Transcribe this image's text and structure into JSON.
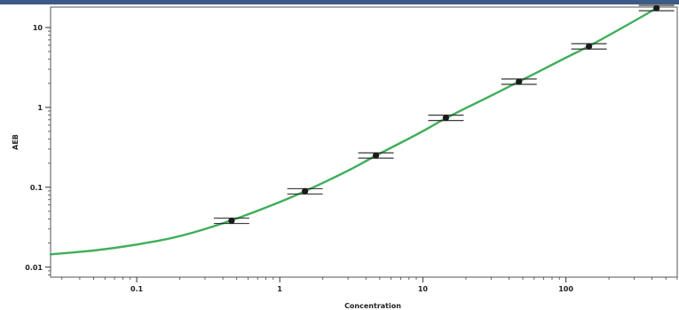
{
  "chart_data": {
    "type": "scatter",
    "xlabel": "Concentration",
    "ylabel": "AEB",
    "xscale": "log",
    "yscale": "log",
    "xlim": [
      0.025,
      600
    ],
    "ylim": [
      0.0075,
      18
    ],
    "x_ticks": [
      {
        "value": 0.1,
        "label": "0.1"
      },
      {
        "value": 1,
        "label": "1"
      },
      {
        "value": 10,
        "label": "10"
      },
      {
        "value": 100,
        "label": "100"
      }
    ],
    "y_ticks": [
      {
        "value": 0.01,
        "label": "0.01"
      },
      {
        "value": 0.1,
        "label": "0.1"
      },
      {
        "value": 1,
        "label": "1"
      },
      {
        "value": 10,
        "label": "10"
      }
    ],
    "points": [
      {
        "x": 0.46,
        "y": 0.038
      },
      {
        "x": 1.5,
        "y": 0.089
      },
      {
        "x": 4.7,
        "y": 0.25
      },
      {
        "x": 14.5,
        "y": 0.74
      },
      {
        "x": 47,
        "y": 2.1
      },
      {
        "x": 145,
        "y": 5.8
      },
      {
        "x": 430,
        "y": 17.5
      }
    ],
    "curve": {
      "x": [
        0.025,
        0.05,
        0.1,
        0.2,
        0.46,
        1,
        1.5,
        3,
        4.7,
        10,
        14.5,
        30,
        47,
        100,
        145,
        300,
        430
      ],
      "y": [
        0.0145,
        0.016,
        0.019,
        0.024,
        0.038,
        0.065,
        0.089,
        0.16,
        0.25,
        0.5,
        0.74,
        1.4,
        2.1,
        4.2,
        5.8,
        12,
        17.5
      ]
    },
    "grid": false,
    "legend": "none",
    "colors": {
      "curve": "#3fae5a",
      "points": "#1a1a1a",
      "frame": "#555555",
      "topbar": "#3c5a86"
    }
  }
}
